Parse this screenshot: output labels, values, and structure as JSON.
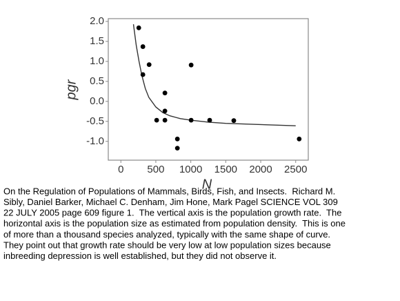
{
  "chart_data": {
    "type": "scatter",
    "x_label": "N",
    "y_label": "pgr",
    "x": [
      256,
      315,
      315,
      404,
      512,
      630,
      630,
      630,
      808,
      808,
      1005,
      1005,
      1270,
      1615,
      2550
    ],
    "y": [
      1.84,
      1.37,
      0.67,
      0.92,
      -0.47,
      0.21,
      -0.24,
      -0.47,
      -0.94,
      -1.17,
      0.91,
      -0.47,
      -0.47,
      -0.48,
      -0.94
    ],
    "color": "#000000",
    "curve": {
      "x": [
        180,
        220,
        260,
        300,
        350,
        400,
        500,
        600,
        700,
        850,
        1000,
        1250,
        1500,
        2000,
        2500
      ],
      "y": [
        1.93,
        1.4,
        1.0,
        0.65,
        0.32,
        0.1,
        -0.14,
        -0.28,
        -0.36,
        -0.43,
        -0.47,
        -0.52,
        -0.55,
        -0.58,
        -0.61
      ],
      "color": "#333333"
    },
    "xlim": [
      -180,
      2680
    ],
    "ylim": [
      -1.47,
      2.07
    ],
    "xticks": [
      0,
      500,
      1000,
      1500,
      2000,
      2500
    ],
    "yticks": [
      {
        "value": 2,
        "label": "2.0"
      },
      {
        "value": 1.5,
        "label": "1.5"
      },
      {
        "value": 1,
        "label": "1.0"
      },
      {
        "value": 0.5,
        "label": "0.5"
      },
      {
        "value": 0,
        "label": "0.0"
      },
      {
        "value": -0.5,
        "label": "-0.5"
      },
      {
        "value": -1,
        "label": "-1.0"
      }
    ]
  },
  "caption": [
    "On the Regulation of Populations of Mammals, Birds, Fish, and Insects.  Richard M.",
    "Sibly, Daniel Barker, Michael C. Denham, Jim Hone, Mark Pagel SCIENCE VOL 309",
    "22 JULY 2005 page 609 figure 1.  The vertical axis is the population growth rate.  The",
    "horizontal axis is the population size as estimated from population density.  This is one",
    "of more than a thousand species analyzed, typically with the same shape of curve.",
    "They point out that growth rate should be very low at low population sizes because",
    "inbreeding depression is well established, but they did not observe it."
  ]
}
